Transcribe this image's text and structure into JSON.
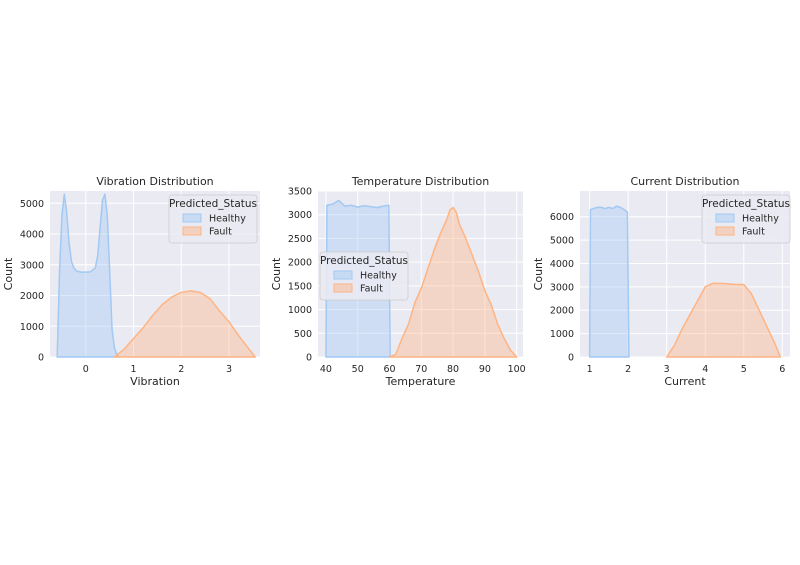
{
  "chart_data": [
    {
      "type": "histogram",
      "title": "Vibration Distribution",
      "xlabel": "Vibration",
      "ylabel": "Count",
      "xlim": [
        -0.75,
        3.65
      ],
      "ylim": [
        0,
        5400
      ],
      "xticks": [
        0,
        1,
        2,
        3
      ],
      "yticks": [
        0,
        1000,
        2000,
        3000,
        4000,
        5000
      ],
      "legend": {
        "title": "Predicted_Status",
        "position": "top-right"
      },
      "series": [
        {
          "name": "Healthy",
          "color": "#a1c9f4",
          "x": [
            -0.6,
            -0.55,
            -0.5,
            -0.45,
            -0.4,
            -0.35,
            -0.3,
            -0.25,
            -0.2,
            -0.1,
            0.0,
            0.1,
            0.2,
            0.25,
            0.3,
            0.35,
            0.4,
            0.45,
            0.5,
            0.55,
            0.6,
            0.65,
            0.7
          ],
          "y": [
            0,
            2800,
            4600,
            5300,
            4700,
            3700,
            3100,
            2900,
            2800,
            2760,
            2760,
            2770,
            2900,
            3300,
            4200,
            5100,
            5300,
            4600,
            2800,
            900,
            300,
            80,
            0
          ]
        },
        {
          "name": "Fault",
          "color": "#ffb482",
          "x": [
            0.6,
            0.8,
            1.0,
            1.2,
            1.4,
            1.6,
            1.8,
            2.0,
            2.2,
            2.4,
            2.6,
            2.8,
            3.0,
            3.2,
            3.4,
            3.55
          ],
          "y": [
            0,
            250,
            600,
            950,
            1350,
            1700,
            1950,
            2100,
            2150,
            2100,
            1900,
            1500,
            1150,
            700,
            300,
            0
          ]
        }
      ]
    },
    {
      "type": "histogram",
      "title": "Temperature Distribution",
      "xlabel": "Temperature",
      "ylabel": "Count",
      "xlim": [
        37.5,
        102
      ],
      "ylim": [
        0,
        3500
      ],
      "xticks": [
        40,
        50,
        60,
        70,
        80,
        90,
        100
      ],
      "yticks": [
        0,
        500,
        1000,
        1500,
        2000,
        2500,
        3000,
        3500
      ],
      "legend": {
        "title": "Predicted_Status",
        "position": "center-left"
      },
      "series": [
        {
          "name": "Healthy",
          "color": "#a1c9f4",
          "x": [
            40,
            40.3,
            42,
            44,
            46,
            48,
            50,
            52,
            54,
            56,
            58,
            59.8,
            60.2
          ],
          "y": [
            0,
            3200,
            3220,
            3300,
            3180,
            3200,
            3160,
            3190,
            3170,
            3150,
            3180,
            3200,
            0
          ]
        },
        {
          "name": "Fault",
          "color": "#ffb482",
          "x": [
            60,
            62,
            64,
            66,
            68,
            70,
            72,
            74,
            76,
            78,
            79,
            80,
            81,
            82,
            84,
            86,
            88,
            90,
            92,
            94,
            96,
            98,
            100
          ],
          "y": [
            0,
            60,
            400,
            700,
            1150,
            1450,
            1850,
            2250,
            2600,
            2900,
            3100,
            3150,
            3050,
            2800,
            2500,
            2150,
            1800,
            1400,
            1100,
            700,
            400,
            150,
            0
          ]
        }
      ]
    },
    {
      "type": "histogram",
      "title": "Current Distribution",
      "xlabel": "Current",
      "ylabel": "Count",
      "xlim": [
        0.75,
        6.2
      ],
      "ylim": [
        0,
        7100
      ],
      "xticks": [
        1,
        2,
        3,
        4,
        5,
        6
      ],
      "yticks": [
        0,
        1000,
        2000,
        3000,
        4000,
        5000,
        6000
      ],
      "legend": {
        "title": "Predicted_Status",
        "position": "top-right"
      },
      "series": [
        {
          "name": "Healthy",
          "color": "#a1c9f4",
          "x": [
            1.0,
            1.02,
            1.1,
            1.2,
            1.3,
            1.4,
            1.5,
            1.6,
            1.7,
            1.8,
            1.9,
            1.98,
            2.02
          ],
          "y": [
            0,
            6300,
            6350,
            6400,
            6400,
            6350,
            6400,
            6350,
            6450,
            6400,
            6300,
            6200,
            0
          ]
        },
        {
          "name": "Fault",
          "color": "#ffb482",
          "x": [
            3.0,
            3.2,
            3.4,
            3.6,
            3.8,
            4.0,
            4.2,
            4.4,
            4.6,
            4.8,
            5.0,
            5.2,
            5.4,
            5.6,
            5.8,
            5.95
          ],
          "y": [
            0,
            500,
            1200,
            1800,
            2400,
            3000,
            3150,
            3150,
            3130,
            3100,
            3100,
            2700,
            2000,
            1300,
            600,
            0
          ]
        }
      ]
    }
  ]
}
